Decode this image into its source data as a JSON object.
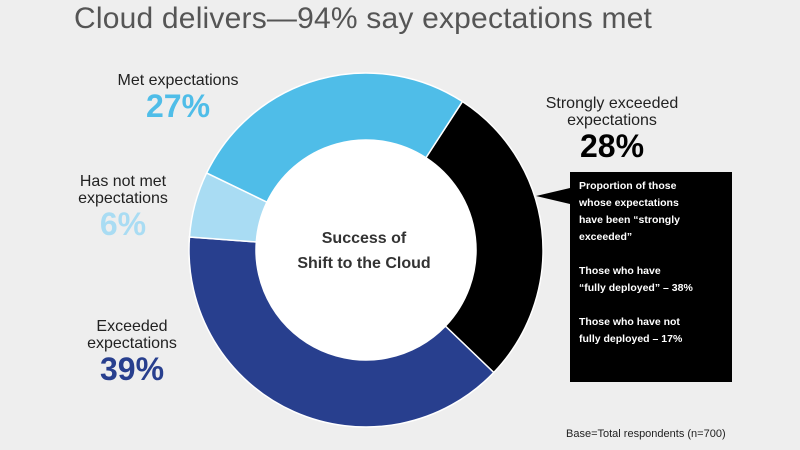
{
  "title": "Cloud delivers—94% say expectations met",
  "chart_data": {
    "type": "pie",
    "center_label": [
      "Success of",
      "Shift to the Cloud"
    ],
    "slices": [
      {
        "label": "Strongly exceeded expectations",
        "value": 28,
        "display": "28%",
        "color": "#000000"
      },
      {
        "label": "Exceeded expectations",
        "value": 39,
        "display": "39%",
        "color": "#283f8e"
      },
      {
        "label": "Has not met expectations",
        "value": 6,
        "display": "6%",
        "color": "#a9dcf3"
      },
      {
        "label": "Met expectations",
        "value": 27,
        "display": "27%",
        "color": "#4fbde8"
      }
    ]
  },
  "labels": {
    "strongly_line1": "Strongly exceeded",
    "strongly_line2": "expectations",
    "exceeded_line1": "Exceeded",
    "exceeded_line2": "expectations",
    "notmet_line1": "Has not met",
    "notmet_line2": "expectations",
    "met_line1": "Met expectations"
  },
  "callout": {
    "p1": [
      "Proportion of those",
      "whose expectations",
      "have been “strongly",
      "exceeded”"
    ],
    "p2": [
      "Those who have",
      "“fully deployed”  – 38%"
    ],
    "p3": [
      "Those who have not",
      "fully deployed – 17%"
    ]
  },
  "base_note": "Base=Total respondents (n=700)"
}
